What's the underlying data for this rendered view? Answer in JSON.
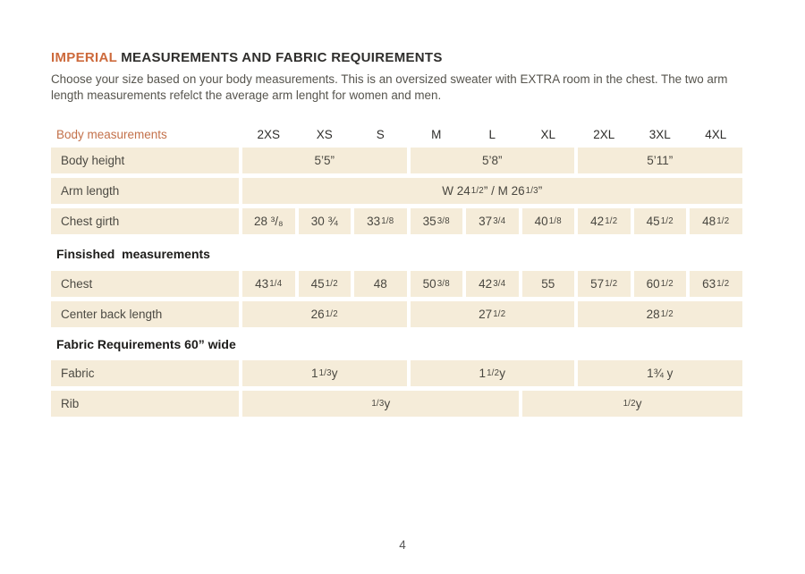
{
  "colors": {
    "accent_orange": "#cd6a3c",
    "cell_beige": "#f5ecd9",
    "text_dark": "#2f2e2c",
    "text_gray": "#56544d"
  },
  "header": {
    "title_accent": "IMPERIAL",
    "title_rest": " MEASUREMENTS AND FABRIC REQUIREMENTS",
    "intro": "Choose your size based on your body measurements. This is an oversized sweater with EXTRA room in the chest. The two arm length measurements refelct the average arm lenght for women and men."
  },
  "table": {
    "corner_label": "Body measurements",
    "sizes": [
      "2XS",
      "XS",
      "S",
      "M",
      "L",
      "XL",
      "2XL",
      "3XL",
      "4XL"
    ],
    "body_height": {
      "label": "Body height",
      "values": [
        "5’5”",
        "5’8”",
        "5’11”"
      ]
    },
    "arm_length": {
      "label": "Arm length",
      "value": "W 24 1/2”  /  M 26 1/3”"
    },
    "chest_girth": {
      "label": "Chest girth",
      "values": [
        "28 ³/₈",
        "30 ¾",
        "33 1/8",
        "35 3/8",
        "37 3/4",
        "40 1/8",
        "42 1/2",
        "45 1/2",
        "48 1/2"
      ]
    },
    "finished_section_title": "Finsished  measurements",
    "chest": {
      "label": "Chest",
      "values": [
        "43 1/4",
        "45 1/2",
        "48",
        "50 3/8",
        "42 3/4",
        "55",
        "57 1/2",
        "60 1/2",
        "63 1/2"
      ]
    },
    "center_back": {
      "label": "Center back length",
      "values": [
        "26 1/2",
        "27 1/2",
        "28 1/2"
      ]
    },
    "fabric_section_title": "Fabric Requirements 60” wide",
    "fabric": {
      "label": "Fabric",
      "values": [
        "1 1/3  y",
        "1 1/2y",
        "1¾ y"
      ]
    },
    "rib": {
      "label": "Rib",
      "values": [
        "1/3 y",
        "1/2 y"
      ]
    }
  },
  "footer": {
    "page_number": "4"
  }
}
